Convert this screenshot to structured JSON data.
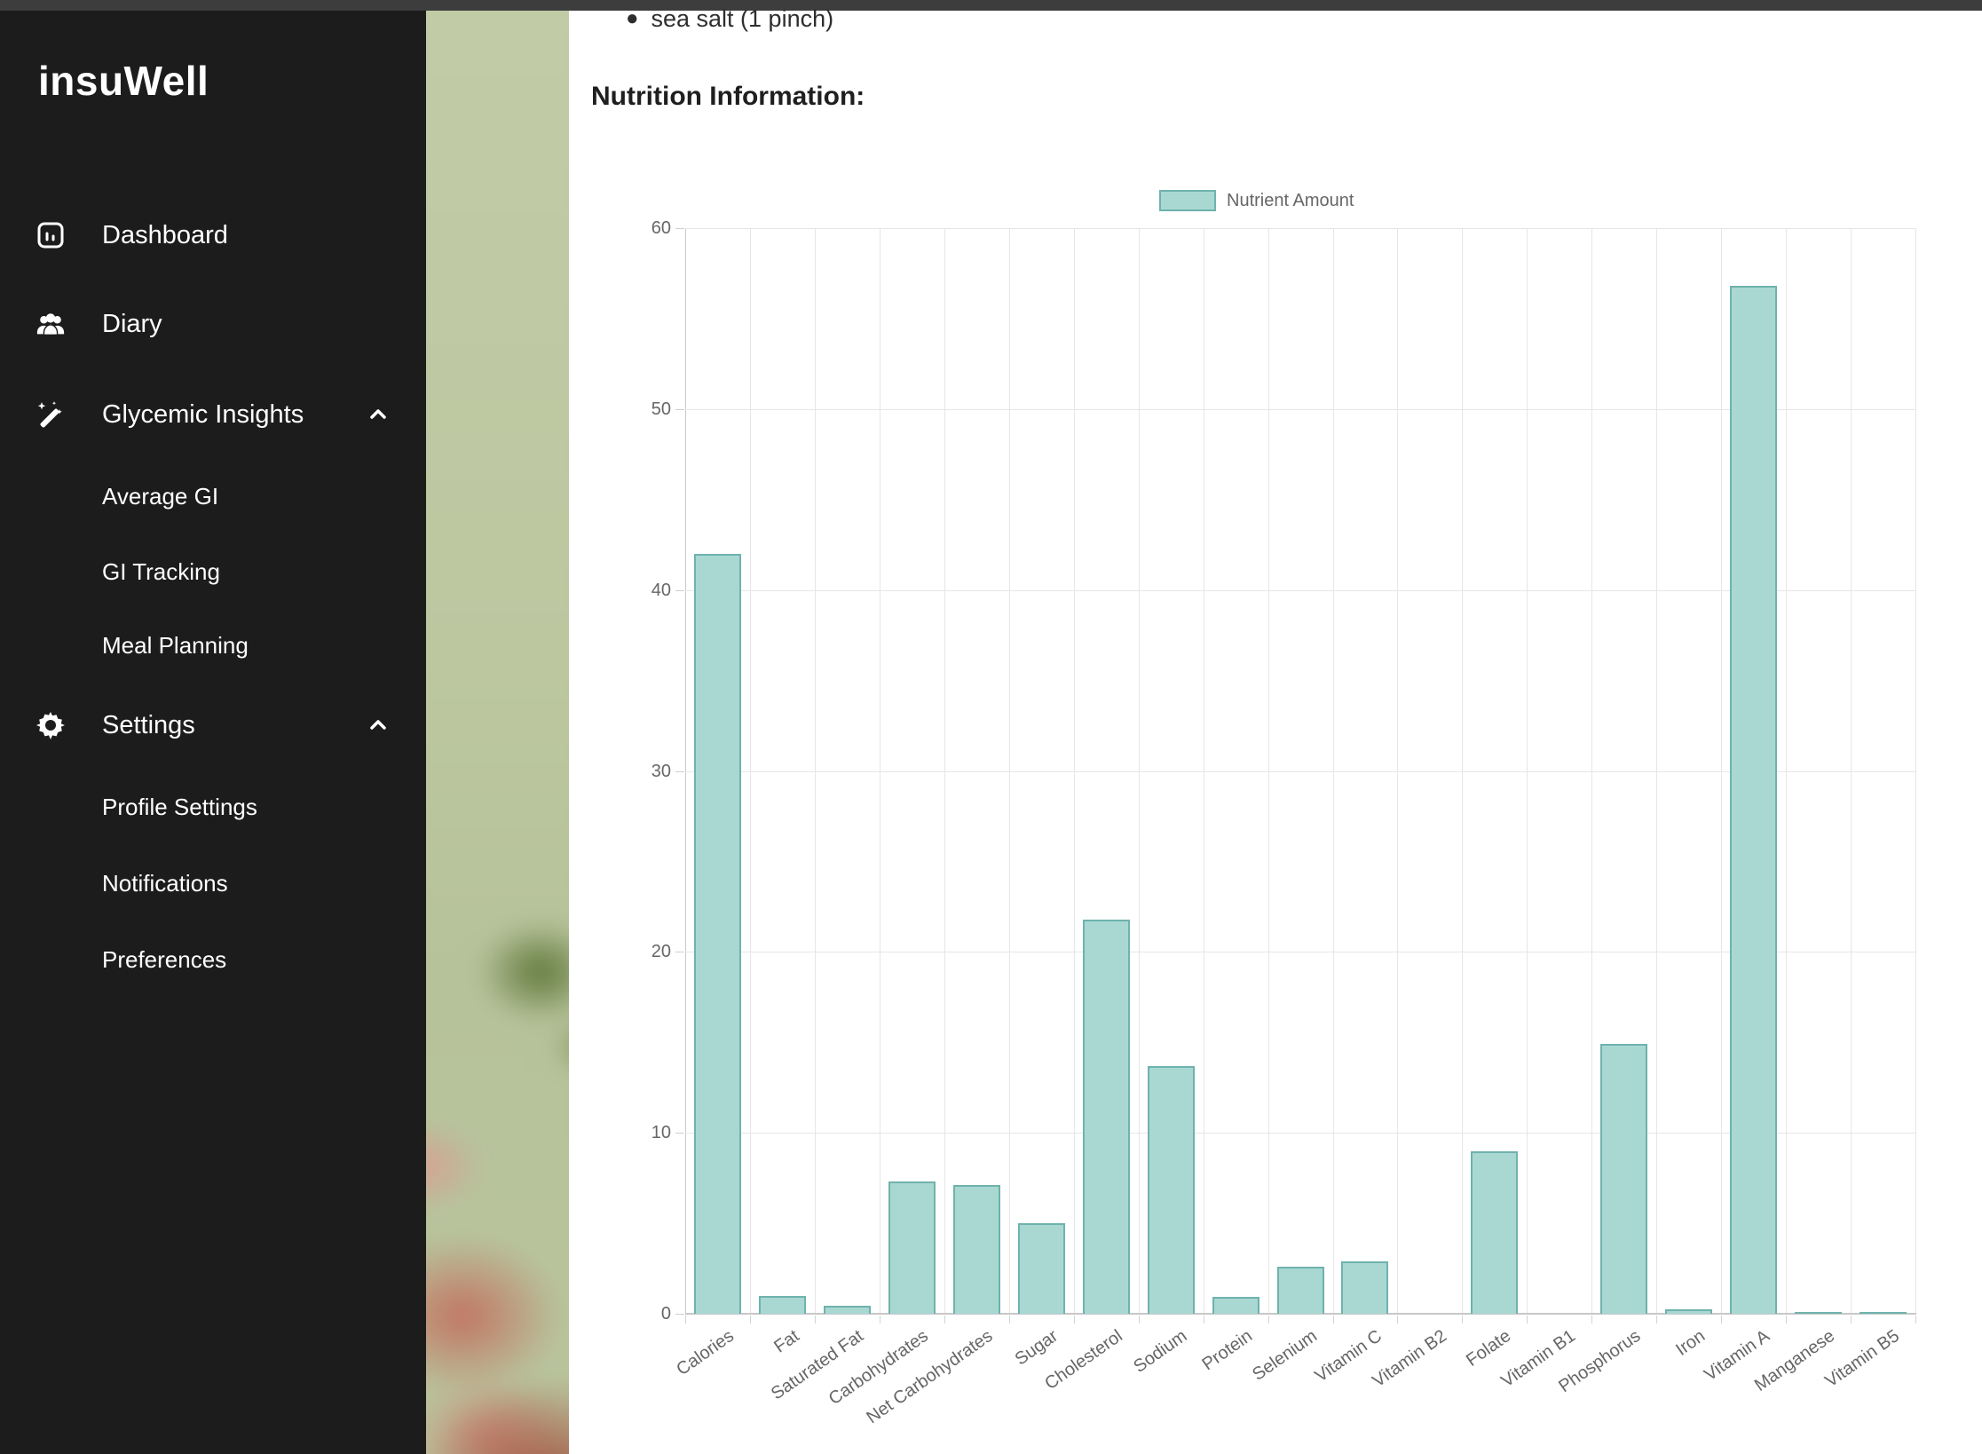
{
  "ui_colors": {
    "topbar_bg": "#3D3D3D",
    "sidebar_bg": "#1C1C1C",
    "sidebar_text": "#FFFFFF",
    "content_bg": "#FFFFFF"
  },
  "sidebar": {
    "logo": "insuWell",
    "items": [
      {
        "label": "Dashboard",
        "icon": "dashboard-icon"
      },
      {
        "label": "Diary",
        "icon": "people-icon"
      },
      {
        "label": "Glycemic Insights",
        "icon": "wand-icon",
        "expanded": true,
        "children": [
          "Average GI",
          "GI Tracking",
          "Meal Planning"
        ]
      },
      {
        "label": "Settings",
        "icon": "gear-icon",
        "expanded": true,
        "children": [
          "Profile Settings",
          "Notifications",
          "Preferences"
        ]
      }
    ]
  },
  "content": {
    "ingredient_bullet": "sea salt (1 pinch)",
    "section_heading": "Nutrition Information:"
  },
  "chart_data": {
    "type": "bar",
    "title": "Nutrition Information",
    "legend": {
      "label": "Nutrient Amount",
      "position": "top"
    },
    "categories": [
      "Calories",
      "Fat",
      "Saturated Fat",
      "Carbohydrates",
      "Net Carbohydrates",
      "Sugar",
      "Cholesterol",
      "Sodium",
      "Protein",
      "Selenium",
      "Vitamin C",
      "Vitamin B2",
      "Folate",
      "Vitamin B1",
      "Phosphorus",
      "Iron",
      "Vitamin A",
      "Manganese",
      "Vitamin B5"
    ],
    "values": [
      42,
      1,
      0.45,
      7.3,
      7.1,
      5,
      21.8,
      13.7,
      0.95,
      2.6,
      2.9,
      0,
      9,
      0,
      14.9,
      0.25,
      56.8,
      0.08,
      0.12
    ],
    "xlabel": "",
    "ylabel": "",
    "ylim": [
      0,
      60
    ],
    "yticks": [
      0,
      10,
      20,
      30,
      40,
      50,
      60
    ],
    "grid": true,
    "colors": {
      "bar_fill": "#A9D8D3",
      "bar_border": "#6FB2AD",
      "axis_text": "#666666",
      "grid_line": "#E6E6E6"
    }
  }
}
